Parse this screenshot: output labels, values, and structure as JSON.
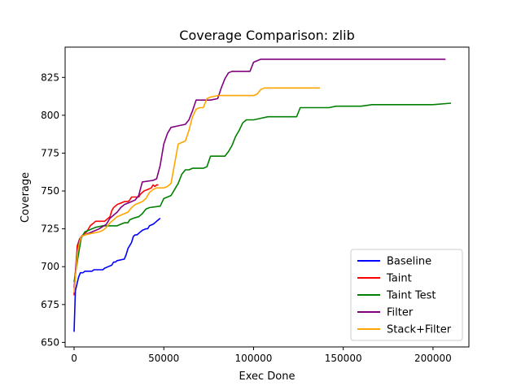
{
  "chart_data": {
    "type": "line",
    "title": "Coverage Comparison: zlib",
    "xlabel": "Exec Done",
    "ylabel": "Coverage",
    "xlim": [
      -5000,
      220000
    ],
    "ylim": [
      647,
      845
    ],
    "xticks": [
      {
        "value": 0,
        "label": "0"
      },
      {
        "value": 50000,
        "label": "50000"
      },
      {
        "value": 100000,
        "label": "100000"
      },
      {
        "value": 150000,
        "label": "150000"
      },
      {
        "value": 200000,
        "label": "200000"
      }
    ],
    "yticks": [
      {
        "value": 650,
        "label": "650"
      },
      {
        "value": 675,
        "label": "675"
      },
      {
        "value": 700,
        "label": "700"
      },
      {
        "value": 725,
        "label": "725"
      },
      {
        "value": 750,
        "label": "750"
      },
      {
        "value": 775,
        "label": "775"
      },
      {
        "value": 800,
        "label": "800"
      },
      {
        "value": 825,
        "label": "825"
      }
    ],
    "grid": false,
    "legend_position": "lower right",
    "series": [
      {
        "name": "Baseline",
        "color": "#0000ff",
        "points": [
          [
            0,
            657
          ],
          [
            700,
            684
          ],
          [
            1500,
            688
          ],
          [
            2500,
            693
          ],
          [
            3500,
            696
          ],
          [
            5000,
            696
          ],
          [
            6000,
            697
          ],
          [
            8000,
            697
          ],
          [
            10000,
            697
          ],
          [
            11000,
            698
          ],
          [
            16000,
            698
          ],
          [
            17000,
            699
          ],
          [
            19000,
            700
          ],
          [
            21000,
            701
          ],
          [
            22000,
            703
          ],
          [
            23000,
            703
          ],
          [
            24000,
            704
          ],
          [
            28000,
            705
          ],
          [
            29000,
            708
          ],
          [
            30000,
            712
          ],
          [
            31000,
            714
          ],
          [
            32000,
            716
          ],
          [
            33000,
            720
          ],
          [
            34000,
            721
          ],
          [
            35000,
            721
          ],
          [
            36000,
            722
          ],
          [
            38000,
            724
          ],
          [
            40000,
            725
          ],
          [
            41000,
            725
          ],
          [
            42000,
            727
          ],
          [
            44000,
            728
          ],
          [
            45000,
            729
          ],
          [
            46000,
            730
          ],
          [
            47000,
            731
          ],
          [
            48000,
            732
          ]
        ]
      },
      {
        "name": "Taint",
        "color": "#ff0000",
        "points": [
          [
            0,
            681
          ],
          [
            800,
            697
          ],
          [
            1800,
            714
          ],
          [
            3000,
            718
          ],
          [
            4000,
            720
          ],
          [
            6000,
            722
          ],
          [
            7000,
            723
          ],
          [
            8000,
            725
          ],
          [
            9000,
            727
          ],
          [
            10000,
            728
          ],
          [
            11000,
            729
          ],
          [
            12000,
            730
          ],
          [
            17000,
            730
          ],
          [
            18000,
            731
          ],
          [
            20000,
            733
          ],
          [
            21000,
            737
          ],
          [
            22000,
            739
          ],
          [
            24000,
            741
          ],
          [
            26000,
            742
          ],
          [
            28000,
            743
          ],
          [
            30000,
            743
          ],
          [
            31000,
            744
          ],
          [
            32000,
            746
          ],
          [
            34000,
            746
          ],
          [
            36000,
            746
          ],
          [
            37000,
            748
          ],
          [
            39000,
            750
          ],
          [
            41000,
            751
          ],
          [
            43000,
            752
          ],
          [
            44000,
            754
          ],
          [
            45000,
            753
          ],
          [
            46000,
            754
          ],
          [
            47000,
            754
          ]
        ]
      },
      {
        "name": "Taint Test",
        "color": "#008000",
        "points": [
          [
            0,
            690
          ],
          [
            1000,
            697
          ],
          [
            2000,
            705
          ],
          [
            3000,
            712
          ],
          [
            4000,
            719
          ],
          [
            5000,
            721
          ],
          [
            6000,
            723
          ],
          [
            8000,
            724
          ],
          [
            10000,
            725
          ],
          [
            12000,
            726
          ],
          [
            16000,
            727
          ],
          [
            20000,
            727
          ],
          [
            24000,
            727
          ],
          [
            26000,
            728
          ],
          [
            28000,
            729
          ],
          [
            30000,
            729
          ],
          [
            31000,
            731
          ],
          [
            33000,
            732
          ],
          [
            36000,
            733
          ],
          [
            38000,
            735
          ],
          [
            40000,
            738
          ],
          [
            42000,
            739
          ],
          [
            48000,
            740
          ],
          [
            50000,
            745
          ],
          [
            52000,
            746
          ],
          [
            54000,
            747
          ],
          [
            56000,
            751
          ],
          [
            58000,
            755
          ],
          [
            60000,
            761
          ],
          [
            62000,
            764
          ],
          [
            64000,
            764
          ],
          [
            66000,
            765
          ],
          [
            68000,
            765
          ],
          [
            72000,
            765
          ],
          [
            74000,
            766
          ],
          [
            76000,
            773
          ],
          [
            84000,
            773
          ],
          [
            86000,
            776
          ],
          [
            88000,
            780
          ],
          [
            90000,
            786
          ],
          [
            92000,
            790
          ],
          [
            94000,
            795
          ],
          [
            96000,
            797
          ],
          [
            100000,
            797
          ],
          [
            104000,
            798
          ],
          [
            108000,
            799
          ],
          [
            114000,
            799
          ],
          [
            124000,
            799
          ],
          [
            126000,
            805
          ],
          [
            142000,
            805
          ],
          [
            146000,
            806
          ],
          [
            160000,
            806
          ],
          [
            166000,
            807
          ],
          [
            200000,
            807
          ],
          [
            210000,
            808
          ]
        ]
      },
      {
        "name": "Filter",
        "color": "#800080",
        "points": [
          [
            0,
            686
          ],
          [
            1000,
            700
          ],
          [
            2000,
            712
          ],
          [
            3000,
            718
          ],
          [
            4000,
            720
          ],
          [
            6000,
            721
          ],
          [
            8000,
            722
          ],
          [
            10000,
            723
          ],
          [
            14000,
            725
          ],
          [
            18000,
            728
          ],
          [
            20000,
            732
          ],
          [
            22000,
            734
          ],
          [
            24000,
            736
          ],
          [
            26000,
            739
          ],
          [
            28000,
            741
          ],
          [
            30000,
            742
          ],
          [
            32000,
            743
          ],
          [
            34000,
            744
          ],
          [
            36000,
            747
          ],
          [
            38000,
            756
          ],
          [
            44000,
            757
          ],
          [
            46000,
            758
          ],
          [
            48000,
            767
          ],
          [
            50000,
            781
          ],
          [
            52000,
            788
          ],
          [
            54000,
            792
          ],
          [
            58000,
            793
          ],
          [
            62000,
            794
          ],
          [
            64000,
            797
          ],
          [
            66000,
            803
          ],
          [
            68000,
            810
          ],
          [
            72000,
            810
          ],
          [
            76000,
            810
          ],
          [
            80000,
            811
          ],
          [
            82000,
            818
          ],
          [
            84000,
            824
          ],
          [
            86000,
            828
          ],
          [
            88000,
            829
          ],
          [
            98000,
            829
          ],
          [
            100000,
            835
          ],
          [
            102000,
            836
          ],
          [
            104000,
            837
          ],
          [
            126000,
            837
          ],
          [
            130000,
            837
          ],
          [
            170000,
            837
          ],
          [
            207000,
            837
          ]
        ]
      },
      {
        "name": "Stack+Filter",
        "color": "#ffa500",
        "points": [
          [
            0,
            683
          ],
          [
            1000,
            697
          ],
          [
            2000,
            710
          ],
          [
            3000,
            716
          ],
          [
            4000,
            720
          ],
          [
            6000,
            721
          ],
          [
            10000,
            722
          ],
          [
            14000,
            723
          ],
          [
            16000,
            724
          ],
          [
            18000,
            726
          ],
          [
            20000,
            729
          ],
          [
            22000,
            731
          ],
          [
            24000,
            733
          ],
          [
            26000,
            734
          ],
          [
            28000,
            735
          ],
          [
            30000,
            736
          ],
          [
            32000,
            739
          ],
          [
            34000,
            741
          ],
          [
            36000,
            742
          ],
          [
            38000,
            743
          ],
          [
            40000,
            745
          ],
          [
            42000,
            749
          ],
          [
            44000,
            751
          ],
          [
            46000,
            752
          ],
          [
            50000,
            752
          ],
          [
            52000,
            753
          ],
          [
            54000,
            755
          ],
          [
            56000,
            768
          ],
          [
            58000,
            781
          ],
          [
            60000,
            782
          ],
          [
            62000,
            783
          ],
          [
            64000,
            790
          ],
          [
            66000,
            799
          ],
          [
            68000,
            804
          ],
          [
            70000,
            805
          ],
          [
            72000,
            805
          ],
          [
            74000,
            811
          ],
          [
            76000,
            812
          ],
          [
            80000,
            813
          ],
          [
            96000,
            813
          ],
          [
            100000,
            813
          ],
          [
            102000,
            814
          ],
          [
            104000,
            817
          ],
          [
            106000,
            818
          ],
          [
            120000,
            818
          ],
          [
            130000,
            818
          ],
          [
            137000,
            818
          ]
        ]
      }
    ]
  }
}
